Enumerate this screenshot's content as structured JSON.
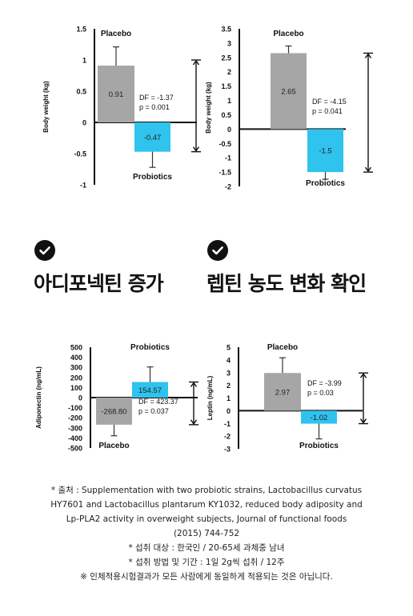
{
  "colors": {
    "placebo": "#a6a6a6",
    "probiotics": "#2fc3ee",
    "text": "#111111"
  },
  "headings": {
    "left": "아디포넥틴 증가",
    "right": "렙틴 농도 변화 확인"
  },
  "footnotes": [
    "* 출처 : Supplementation with two probiotic strains, Lactobacillus curvatus",
    "HY7601 and Lactobacillus plantarum KY1032, reduced body adiposity and",
    "Lp-PLA2 activity in overweight subjects, Journal of functional foods",
    "(2015) 744-752",
    "* 섭취 대상 : 한국인 / 20-65세 과체중 남녀",
    "* 섭취 방법 및 기간 : 1일 2g씩 섭취 / 12주",
    "※ 인체적용시험결과가 모든 사람에게 동일하게 적용되는 것은 아닙니다."
  ],
  "chart_data": [
    {
      "type": "bar",
      "ylabel": "Body weight (kg)",
      "ylim": [
        -1,
        1.5
      ],
      "yticks": [
        "1.5",
        "1",
        "0.5",
        "0",
        "-0.5",
        "-1"
      ],
      "ytick_values": [
        1.5,
        1,
        0.5,
        0,
        -0.5,
        -1
      ],
      "bars": [
        {
          "name": "Placebo",
          "value": 0.91,
          "label": "0.91",
          "error": 0.3,
          "color": "placebo"
        },
        {
          "name": "Probiotics",
          "value": -0.47,
          "label": "-0.47",
          "error": 0.25,
          "color": "probiotics"
        }
      ],
      "annotation": [
        "DF = -1.37",
        "p = 0.001"
      ]
    },
    {
      "type": "bar",
      "ylabel": "Body weight (kg)",
      "ylim": [
        -2,
        3.5
      ],
      "yticks": [
        "3.5",
        "3",
        "2.5",
        "2",
        "1.5",
        "1",
        "0.5",
        "0",
        "-0.5",
        "-1",
        "-1.5",
        "-2"
      ],
      "ytick_values": [
        3.5,
        3,
        2.5,
        2,
        1.5,
        1,
        0.5,
        0,
        -0.5,
        -1,
        -1.5,
        -2
      ],
      "bars": [
        {
          "name": "Placebo",
          "value": 2.65,
          "label": "2.65",
          "error": 0.25,
          "color": "placebo"
        },
        {
          "name": "Probiotics",
          "value": -1.5,
          "label": "-1.5",
          "error": 0.25,
          "color": "probiotics"
        }
      ],
      "annotation": [
        "DF = -4.15",
        "p = 0.041"
      ]
    },
    {
      "type": "bar",
      "ylabel": "Adiponectin (ng/mL)",
      "ylim": [
        -500,
        500
      ],
      "yticks": [
        "500",
        "400",
        "300",
        "200",
        "100",
        "0",
        "-100",
        "-200",
        "-300",
        "-400",
        "-500"
      ],
      "ytick_values": [
        500,
        400,
        300,
        200,
        100,
        0,
        -100,
        -200,
        -300,
        -400,
        -500
      ],
      "bars": [
        {
          "name": "Placebo",
          "value": -268.8,
          "label": "-268.80",
          "error": 110,
          "color": "placebo"
        },
        {
          "name": "Probiotics",
          "value": 154.57,
          "label": "154.57",
          "error": 150,
          "color": "probiotics"
        }
      ],
      "annotation": [
        "DF = 423.37",
        "p = 0.037"
      ]
    },
    {
      "type": "bar",
      "ylabel": "Leptin (ng/mL)",
      "ylim": [
        -3,
        5
      ],
      "yticks": [
        "5",
        "4",
        "3",
        "2",
        "1",
        "0",
        "-1",
        "-2",
        "-3"
      ],
      "ytick_values": [
        5,
        4,
        3,
        2,
        1,
        0,
        -1,
        -2,
        -3
      ],
      "bars": [
        {
          "name": "Placebo",
          "value": 2.97,
          "label": "2.97",
          "error": 1.2,
          "color": "placebo"
        },
        {
          "name": "Probiotics",
          "value": -1.02,
          "label": "-1.02",
          "error": 1.2,
          "color": "probiotics"
        }
      ],
      "annotation": [
        "DF = -3.99",
        "p = 0.03"
      ]
    }
  ]
}
